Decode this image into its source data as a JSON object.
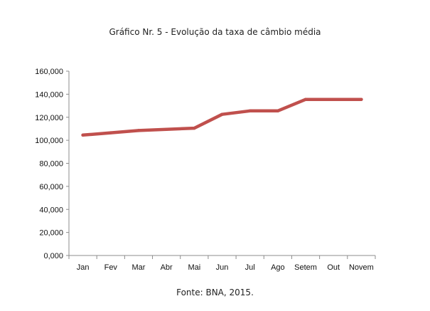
{
  "chart_data": {
    "type": "line",
    "title": "Gráfico Nr. 5 - Evolução da taxa de câmbio média",
    "source": "Fonte: BNA, 2015.",
    "categories": [
      "Jan",
      "Fev",
      "Mar",
      "Abr",
      "Mai",
      "Jun",
      "Jul",
      "Ago",
      "Setem",
      "Out",
      "Novem"
    ],
    "series": [
      {
        "values": [
          104.5,
          106.5,
          108.5,
          109.5,
          110.5,
          122.5,
          125.5,
          125.5,
          135.5,
          135.5,
          135.5
        ],
        "color": "#c0504d"
      }
    ],
    "yticks": [
      "0,000",
      "20,000",
      "40,000",
      "60,000",
      "80,000",
      "100,000",
      "120,000",
      "140,000",
      "160,000"
    ],
    "ylim": [
      0,
      160
    ],
    "grid": false,
    "legend": "none"
  }
}
